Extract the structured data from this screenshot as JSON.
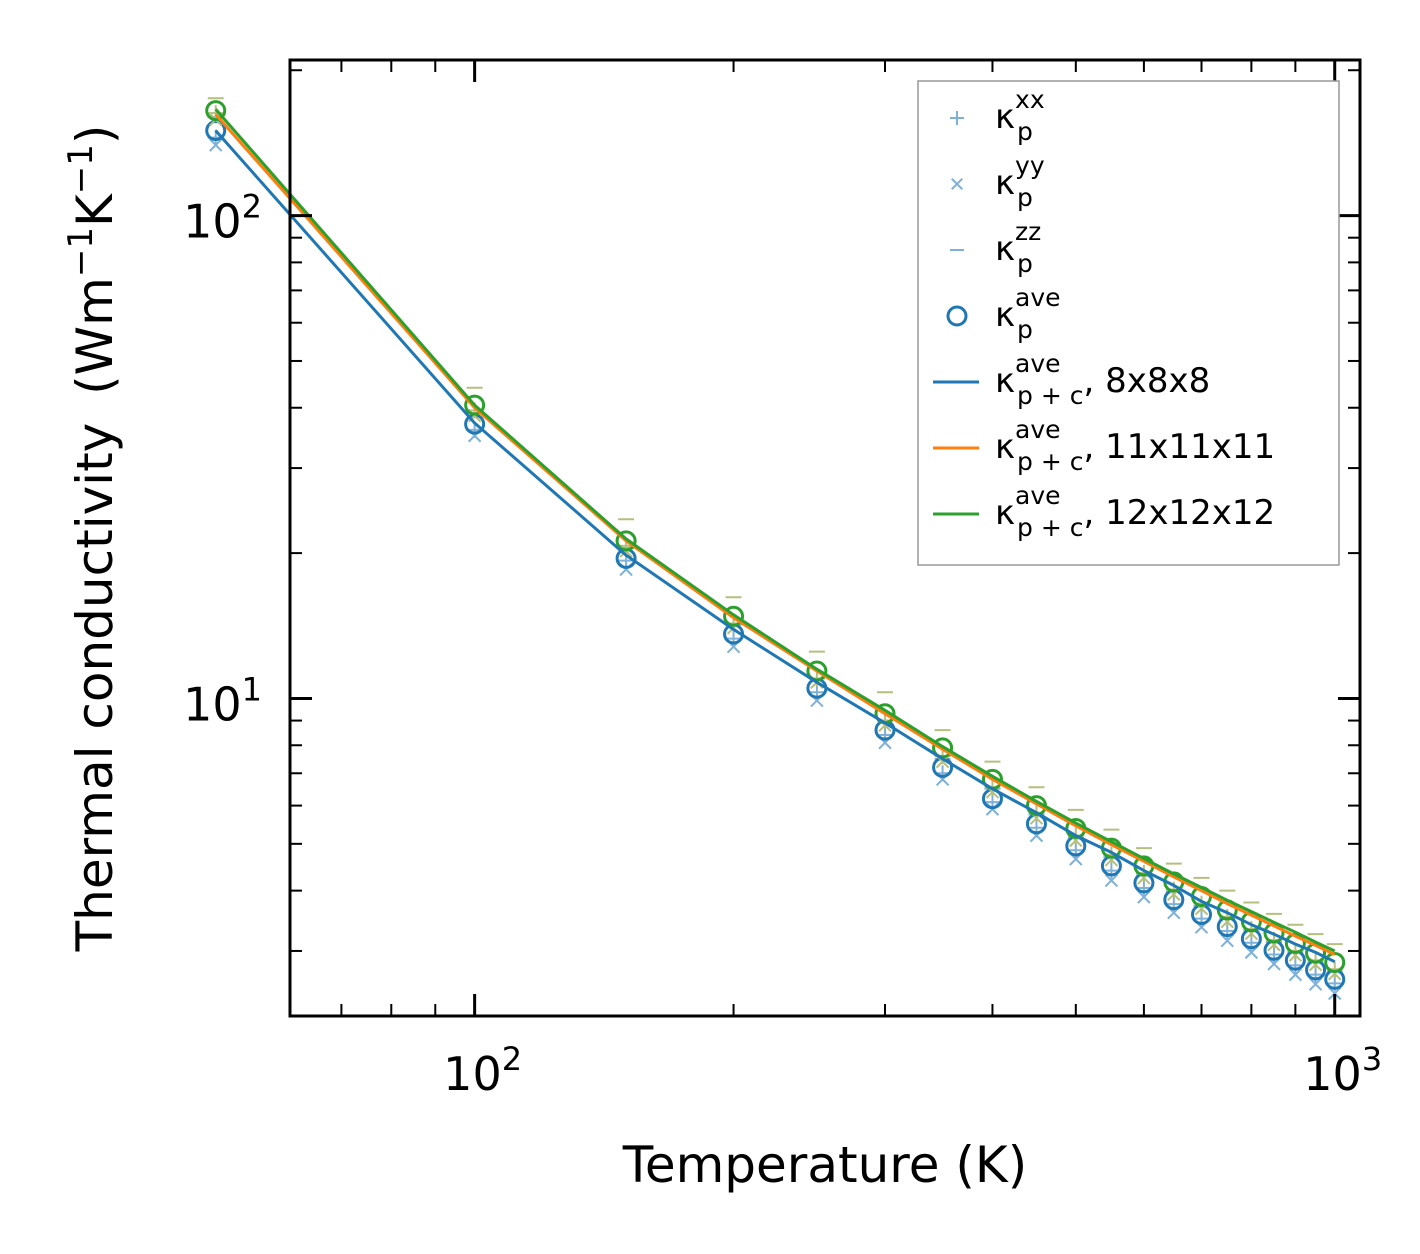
{
  "chart_data": {
    "type": "line",
    "xscale": "log",
    "yscale": "log",
    "xlabel": "Temperature (K)",
    "ylabel": "Thermal conductivity",
    "ylabel_units": {
      "base": "(Wm",
      "exp1": "−1",
      "mid": "K",
      "exp2": "−1",
      "end": ")"
    },
    "xlim": [
      61,
      1070
    ],
    "ylim": [
      2.2,
      210
    ],
    "xticks": [
      {
        "value": 100,
        "base": "10",
        "exp": "2"
      },
      {
        "value": 1000,
        "base": "10",
        "exp": "3"
      }
    ],
    "yticks": [
      {
        "value": 10,
        "base": "10",
        "exp": "1"
      },
      {
        "value": 100,
        "base": "10",
        "exp": "2"
      }
    ],
    "x": [
      50,
      100,
      150,
      200,
      250,
      300,
      350,
      400,
      450,
      500,
      550,
      600,
      650,
      700,
      750,
      800,
      850,
      900,
      950,
      1000
    ],
    "series": [
      {
        "name": "kxx_8",
        "kind": "marker",
        "marker": "plus",
        "color": "#7fb0d8",
        "values": [
          145,
          36,
          19.3,
          13.3,
          10.3,
          8.4,
          7.0,
          6.1,
          5.4,
          4.85,
          4.4,
          4.05,
          3.75,
          3.5,
          3.3,
          3.12,
          2.95,
          2.8,
          2.68,
          2.57
        ]
      },
      {
        "name": "kyy_8",
        "kind": "marker",
        "marker": "cross",
        "color": "#7fb0d8",
        "values": [
          140,
          35,
          18.5,
          12.8,
          9.9,
          8.1,
          6.8,
          5.9,
          5.2,
          4.65,
          4.2,
          3.88,
          3.6,
          3.36,
          3.15,
          2.98,
          2.82,
          2.68,
          2.56,
          2.45
        ]
      },
      {
        "name": "kzz_8",
        "kind": "marker",
        "marker": "dash",
        "color": "#7fb0d8",
        "values": [
          160,
          39,
          20.5,
          14.2,
          11.0,
          9.0,
          7.5,
          6.5,
          5.75,
          5.15,
          4.7,
          4.3,
          3.98,
          3.72,
          3.5,
          3.3,
          3.13,
          2.98,
          2.85,
          2.72
        ]
      },
      {
        "name": "kave_8",
        "kind": "marker",
        "marker": "circle",
        "color": "#1f77b4",
        "values": [
          150,
          37,
          19.5,
          13.6,
          10.5,
          8.6,
          7.2,
          6.2,
          5.5,
          4.95,
          4.5,
          4.15,
          3.83,
          3.57,
          3.37,
          3.18,
          3.01,
          2.87,
          2.74,
          2.62
        ]
      },
      {
        "name": "kxx_12",
        "kind": "marker",
        "marker": "plus",
        "color": "#b5bf7e",
        "values": [
          163,
          39.5,
          20.7,
          14.3,
          11.0,
          9.0,
          7.6,
          6.55,
          5.8,
          5.2,
          4.75,
          4.35,
          4.02,
          3.76,
          3.53,
          3.33,
          3.16,
          3.0,
          2.87,
          2.75
        ]
      },
      {
        "name": "kyy_12",
        "kind": "marker",
        "marker": "cross",
        "color": "#b5bf7e",
        "values": [
          158,
          38.5,
          20.2,
          14.0,
          10.8,
          8.8,
          7.4,
          6.4,
          5.65,
          5.08,
          4.63,
          4.25,
          3.93,
          3.67,
          3.45,
          3.26,
          3.09,
          2.94,
          2.81,
          2.69
        ]
      },
      {
        "name": "kzz_12",
        "kind": "marker",
        "marker": "dash",
        "color": "#b5bf7e",
        "values": [
          175,
          44,
          23.5,
          16.2,
          12.5,
          10.3,
          8.6,
          7.4,
          6.55,
          5.88,
          5.35,
          4.9,
          4.55,
          4.25,
          4.0,
          3.78,
          3.58,
          3.4,
          3.25,
          3.1
        ]
      },
      {
        "name": "kave_12",
        "kind": "marker",
        "marker": "circle",
        "color": "#2ca02c",
        "values": [
          165,
          40.5,
          21.2,
          14.8,
          11.4,
          9.3,
          7.9,
          6.8,
          6.0,
          5.38,
          4.9,
          4.5,
          4.17,
          3.89,
          3.65,
          3.45,
          3.27,
          3.11,
          2.97,
          2.84
        ]
      },
      {
        "name": "kpc_8",
        "kind": "line",
        "color": "#1f77b4",
        "values": [
          150,
          37.2,
          19.8,
          13.9,
          10.8,
          8.9,
          7.5,
          6.5,
          5.8,
          5.2,
          4.8,
          4.4,
          4.1,
          3.8,
          3.6,
          3.4,
          3.25,
          3.1,
          2.98,
          2.85
        ]
      },
      {
        "name": "kpc_11",
        "kind": "line",
        "color": "#ff7f0e",
        "values": [
          162,
          40.0,
          21.2,
          14.7,
          11.4,
          9.3,
          7.85,
          6.8,
          6.05,
          5.45,
          4.98,
          4.6,
          4.27,
          4.0,
          3.76,
          3.56,
          3.38,
          3.22,
          3.08,
          2.95
        ]
      },
      {
        "name": "kpc_12",
        "kind": "line",
        "color": "#2ca02c",
        "values": [
          166,
          40.5,
          21.4,
          14.9,
          11.5,
          9.45,
          7.95,
          6.9,
          6.12,
          5.52,
          5.05,
          4.66,
          4.33,
          4.06,
          3.82,
          3.62,
          3.44,
          3.28,
          3.13,
          3.0
        ]
      }
    ],
    "legend": {
      "position": "upper right",
      "entries": [
        {
          "kind": "marker",
          "marker": "plus",
          "color": "#7fb0d8",
          "sup": "xx",
          "sub": "p",
          "suffix": ""
        },
        {
          "kind": "marker",
          "marker": "cross",
          "color": "#7fb0d8",
          "sup": "yy",
          "sub": "p",
          "suffix": ""
        },
        {
          "kind": "marker",
          "marker": "dash",
          "color": "#7fb0d8",
          "sup": "zz",
          "sub": "p",
          "suffix": ""
        },
        {
          "kind": "marker",
          "marker": "circle",
          "color": "#1f77b4",
          "sup": "ave",
          "sub": "p",
          "suffix": ""
        },
        {
          "kind": "line",
          "color": "#1f77b4",
          "sup": "ave",
          "sub": "p + c",
          "suffix": ", 8x8x8"
        },
        {
          "kind": "line",
          "color": "#ff7f0e",
          "sup": "ave",
          "sub": "p + c",
          "suffix": ", 11x11x11"
        },
        {
          "kind": "line",
          "color": "#2ca02c",
          "sup": "ave",
          "sub": "p + c",
          "suffix": ", 12x12x12"
        }
      ],
      "symbol": "κ"
    }
  }
}
